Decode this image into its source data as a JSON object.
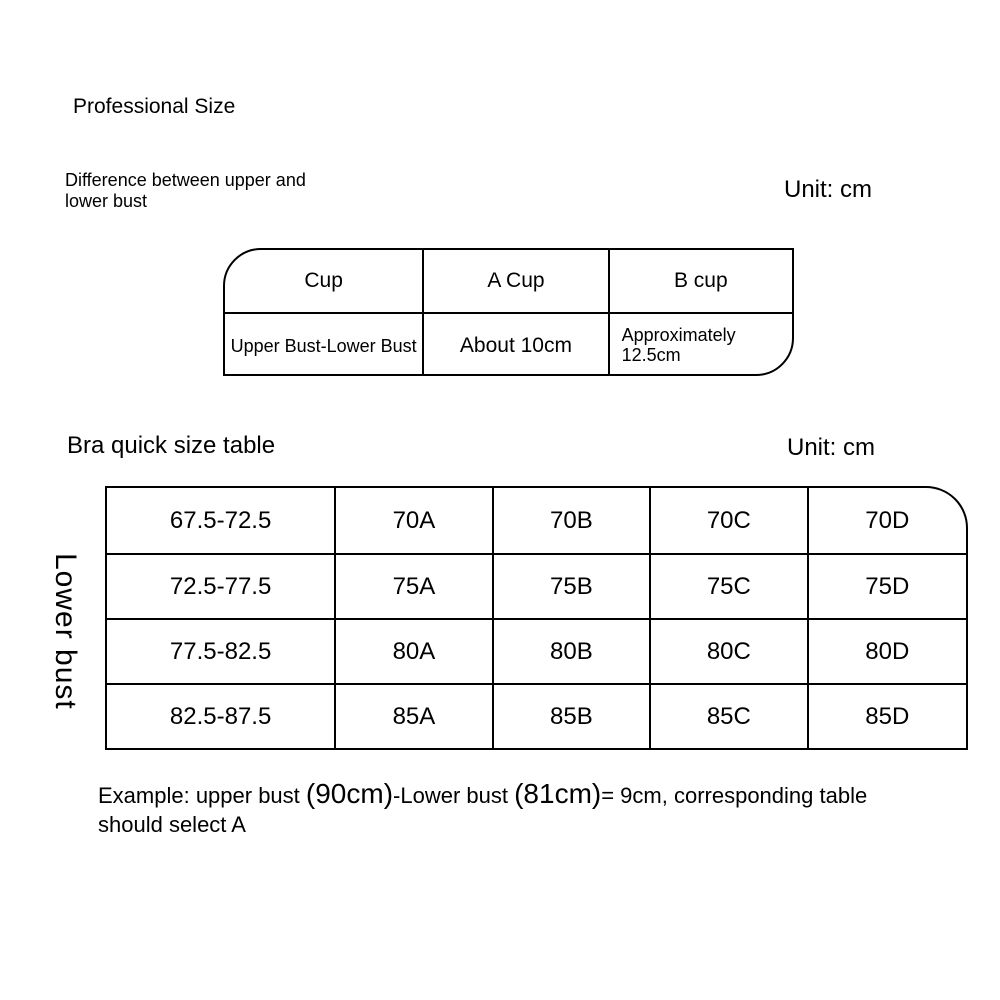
{
  "title": "Professional Size",
  "diffLabel": "Difference between upper and lower bust",
  "unitLabel": "Unit: cm",
  "cupTable": {
    "headers": [
      "Cup",
      "A Cup",
      "B cup"
    ],
    "rowLabel": "Upper Bust-Lower Bust",
    "values": [
      "About 10cm",
      "Approximately 12.5cm"
    ]
  },
  "sizeSection": {
    "title": "Bra quick size table",
    "sideLabel": "Lower bust",
    "rows": [
      [
        "67.5-72.5",
        "70A",
        "70B",
        "70C",
        "70D"
      ],
      [
        "72.5-77.5",
        "75A",
        "75B",
        "75C",
        "75D"
      ],
      [
        "77.5-82.5",
        "80A",
        "80B",
        "80C",
        "80D"
      ],
      [
        "82.5-87.5",
        "85A",
        "85B",
        "85C",
        "85D"
      ]
    ]
  },
  "example": {
    "prefix": "Example: upper bust",
    "upper": "(90cm)",
    "mid": "-Lower bust ",
    "lower": "(81cm)",
    "suffix": "= 9cm, corresponding table should select A"
  }
}
